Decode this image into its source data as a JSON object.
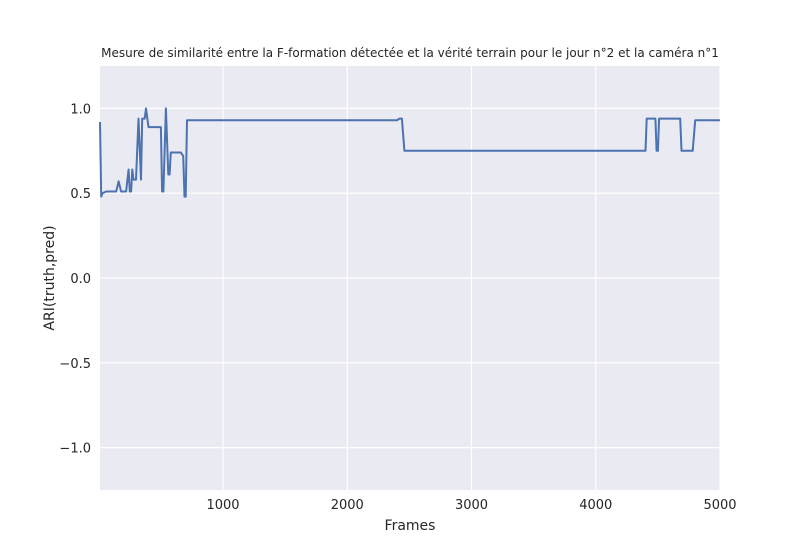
{
  "chart_data": {
    "type": "line",
    "title": "Mesure de similarité entre la F-formation détectée et la vérité terrain pour le jour n°2 et la caméra n°1",
    "xlabel": "Frames",
    "ylabel": "ARI(truth,pred)",
    "xlim": [
      10,
      5000
    ],
    "ylim": [
      -1.25,
      1.25
    ],
    "grid": true,
    "background": "#eaeaf2",
    "line_color": "#4c72b0",
    "x_ticks": [
      1000,
      2000,
      3000,
      4000,
      5000
    ],
    "x_tick_labels": [
      "1000",
      "2000",
      "3000",
      "4000",
      "5000"
    ],
    "y_ticks": [
      1.0,
      0.5,
      0.0,
      -0.5,
      -1.0
    ],
    "y_tick_labels": [
      "1.0",
      "0.5",
      "0.0",
      "−0.5",
      "−1.0"
    ],
    "series": [
      {
        "x": [
          10,
          20,
          30,
          60,
          100,
          140,
          160,
          180,
          200,
          220,
          240,
          250,
          260,
          270,
          280,
          290,
          300,
          320,
          340,
          350,
          360,
          370,
          380,
          400,
          410,
          420,
          430,
          440,
          460,
          480,
          500,
          510,
          520,
          540,
          560,
          570,
          580,
          590,
          600,
          620,
          640,
          660,
          680,
          690,
          700,
          710,
          720,
          740,
          800,
          1000,
          1500,
          2000,
          2300,
          2380,
          2400,
          2420,
          2430,
          2440,
          2460,
          2480,
          2500,
          3000,
          3500,
          4000,
          4300,
          4400,
          4410,
          4420,
          4440,
          4460,
          4480,
          4490,
          4500,
          4510,
          4520,
          4540,
          4560,
          4600,
          4660,
          4680,
          4690,
          4700,
          4720,
          4760,
          4780,
          4800,
          4820,
          4900,
          5000
        ],
        "y": [
          0.92,
          0.48,
          0.5,
          0.51,
          0.51,
          0.51,
          0.57,
          0.51,
          0.51,
          0.51,
          0.64,
          0.51,
          0.51,
          0.64,
          0.58,
          0.58,
          0.58,
          0.94,
          0.58,
          0.94,
          0.94,
          0.94,
          1.0,
          0.89,
          0.89,
          0.89,
          0.89,
          0.89,
          0.89,
          0.89,
          0.89,
          0.51,
          0.51,
          1.0,
          0.61,
          0.61,
          0.74,
          0.74,
          0.74,
          0.74,
          0.74,
          0.74,
          0.72,
          0.48,
          0.48,
          0.93,
          0.93,
          0.93,
          0.93,
          0.93,
          0.93,
          0.93,
          0.93,
          0.93,
          0.93,
          0.94,
          0.94,
          0.94,
          0.75,
          0.75,
          0.75,
          0.75,
          0.75,
          0.75,
          0.75,
          0.75,
          0.94,
          0.94,
          0.94,
          0.94,
          0.94,
          0.75,
          0.75,
          0.94,
          0.94,
          0.94,
          0.94,
          0.94,
          0.94,
          0.94,
          0.75,
          0.75,
          0.75,
          0.75,
          0.75,
          0.93,
          0.93,
          0.93,
          0.93
        ]
      }
    ]
  }
}
